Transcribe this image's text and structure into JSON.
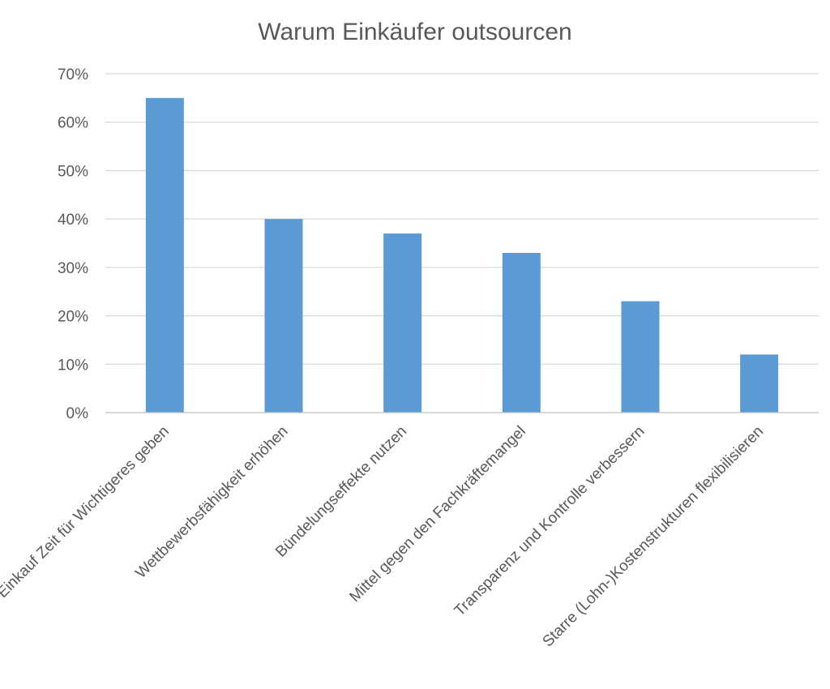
{
  "chart_data": {
    "type": "bar",
    "title": "Warum Einkäufer outsourcen",
    "categories": [
      "Einkauf Zeit für Wichtigeres geben",
      "Wettbewerbsfähigkeit erhöhen",
      "Bündelungseffekte nutzen",
      "Mittel gegen den Fachkräftemangel",
      "Transparenz und Kontrolle verbessern",
      "Starre (Lohn-)Kostenstrukturen flexibilisieren"
    ],
    "values": [
      65,
      40,
      37,
      33,
      23,
      12
    ],
    "ylim": [
      0,
      70
    ],
    "yticks": [
      "0%",
      "10%",
      "20%",
      "30%",
      "40%",
      "50%",
      "60%",
      "70%"
    ],
    "grid": true,
    "legend": "none",
    "colors": {
      "bar": "#5b9bd5",
      "text": "#595959",
      "grid": "#d9d9d9"
    }
  }
}
